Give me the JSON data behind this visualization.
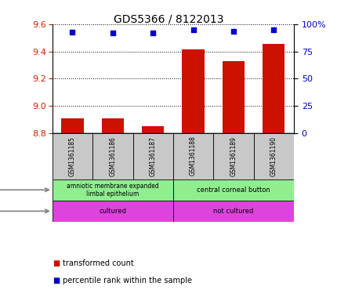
{
  "title": "GDS5366 / 8122013",
  "samples": [
    "GSM1361185",
    "GSM1361186",
    "GSM1361187",
    "GSM1361188",
    "GSM1361189",
    "GSM1361190"
  ],
  "bar_values": [
    8.91,
    8.91,
    8.85,
    9.42,
    9.33,
    9.46
  ],
  "dot_values": [
    93,
    92,
    92,
    95,
    94,
    95
  ],
  "ylim_left": [
    8.8,
    9.6
  ],
  "ylim_right": [
    0,
    100
  ],
  "yticks_left": [
    8.8,
    9.0,
    9.2,
    9.4,
    9.6
  ],
  "yticks_right": [
    0,
    25,
    50,
    75,
    100
  ],
  "ytick_labels_right": [
    "0",
    "25",
    "50",
    "75",
    "100%"
  ],
  "bar_color": "#cc1100",
  "dot_color": "#0000cc",
  "tissue_labels": [
    "amniotic membrane expanded\nlimbal epithelium",
    "central corneal button"
  ],
  "tissue_color": "#90ee90",
  "growth_labels": [
    "cultured",
    "not cultured"
  ],
  "growth_color": "#dd44dd",
  "sample_bg_color": "#c8c8c8",
  "legend_red_label": "transformed count",
  "legend_blue_label": "percentile rank within the sample"
}
